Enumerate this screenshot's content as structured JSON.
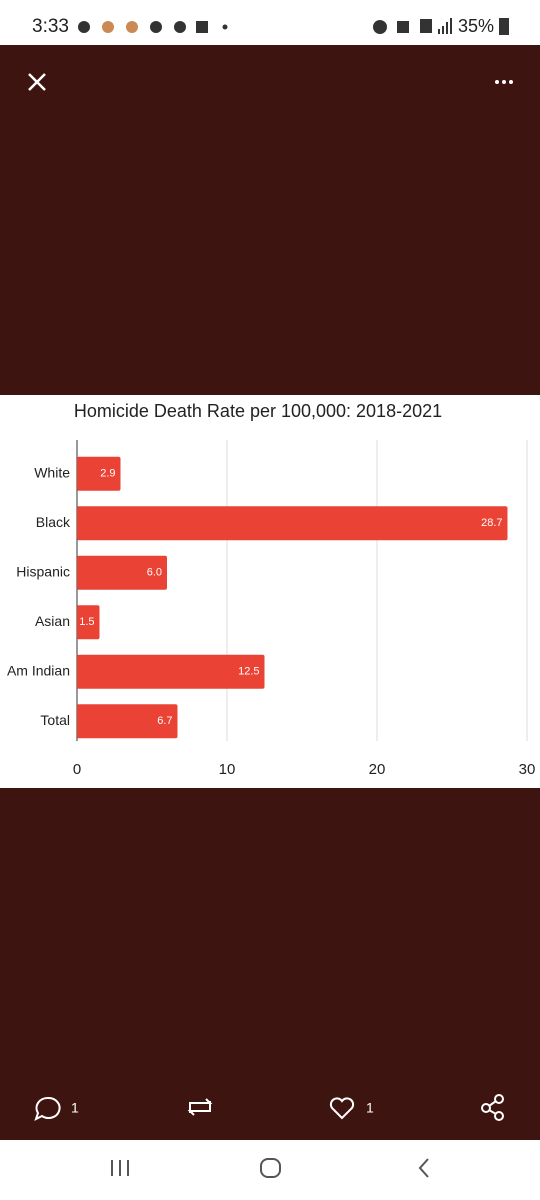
{
  "status_bar": {
    "time": "3:33",
    "battery": "35%"
  },
  "actions": {
    "replies": "1",
    "likes": "1"
  },
  "chart_data": {
    "type": "hbar",
    "title": "Homicide Death Rate per 100,000: 2018-2021",
    "categories": [
      "White",
      "Black",
      "Hispanic",
      "Asian",
      "Am Indian",
      "Total"
    ],
    "values": [
      2.9,
      28.7,
      6.0,
      1.5,
      12.5,
      6.7
    ],
    "value_labels": [
      "2.9",
      "28.7",
      "6.0",
      "1.5",
      "12.5",
      "6.7"
    ],
    "color": "#ea4335",
    "xlim": [
      0,
      30
    ],
    "xticks": [
      0,
      10,
      20,
      30
    ],
    "grid": true
  }
}
